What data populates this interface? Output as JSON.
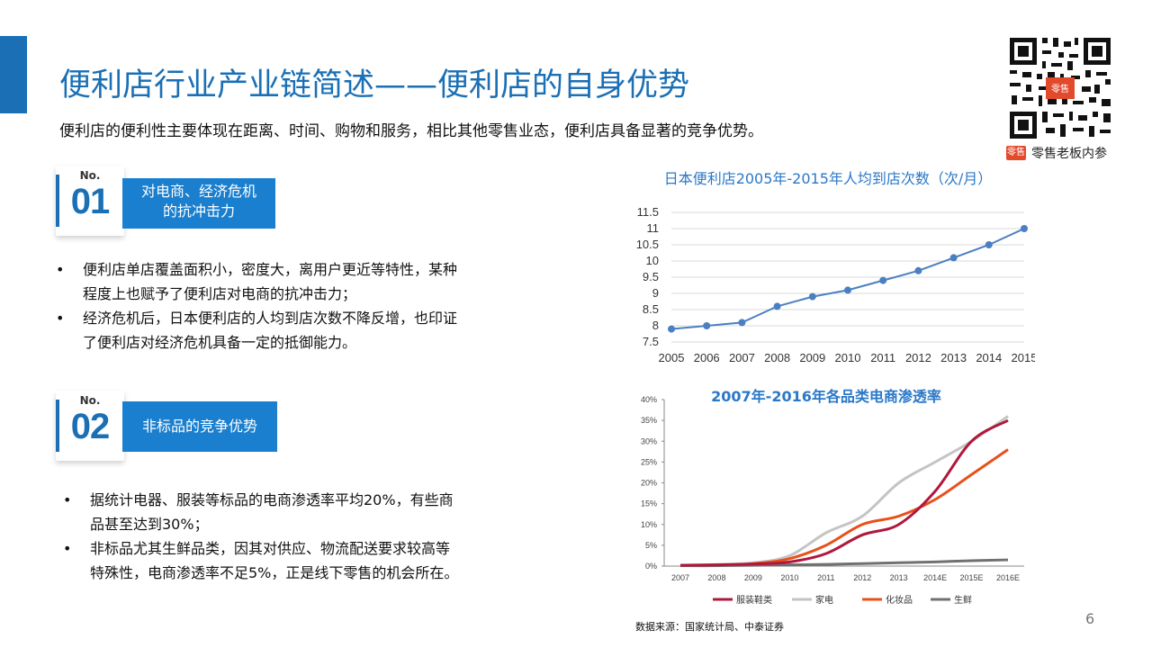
{
  "header": {
    "title": "便利店行业产业链简述——便利店的自身优势",
    "subtitle": "便利店的便利性主要体现在距离、时间、购物和服务，相比其他零售业态，便利店具备显著的竞争优势。",
    "brand_logo": "零售",
    "brand_name": "零售老板内参"
  },
  "sections": [
    {
      "no_label": "No.",
      "number": "01",
      "ribbon_lines": [
        "对电商、经济危机",
        "的抗冲击力"
      ],
      "bullets": [
        [
          "便利店单店覆盖面积小，密度大，离用户更近等特性，某种",
          "程度上也赋予了便利店对电商的抗冲击力；"
        ],
        [
          "经济危机后，日本便利店的人均到店次数不降反增，也印证",
          "了便利店对经济危机具备一定的抵御能力。"
        ]
      ]
    },
    {
      "no_label": "No.",
      "number": "02",
      "ribbon_lines": [
        "非标品的竞争优势"
      ],
      "bullets": [
        [
          "据统计电器、服装等标品的电商渗透率平均20%，有些商",
          "品甚至达到30%；"
        ],
        [
          "非标品尤其生鲜品类，因其对供应、物流配送要求较高等",
          "特殊性，电商渗透率不足5%，正是线下零售的机会所在。"
        ]
      ]
    }
  ],
  "bullet_symbol": "•",
  "source": "数据来源：国家统计局、中泰证券",
  "page_number": "6",
  "colors": {
    "accent": "#1a6fb5",
    "ribbon": "#1a7fcf",
    "line1": "#4a7fc1",
    "apparel": "#b0173c",
    "appliance": "#c4c4c4",
    "cosmetics": "#e8501a",
    "fresh": "#707070"
  },
  "chart_data": [
    {
      "type": "line",
      "title": "日本便利店2005年-2015年人均到店次数（次/月）",
      "x": [
        "2005",
        "2006",
        "2007",
        "2008",
        "2009",
        "2010",
        "2011",
        "2012",
        "2013",
        "2014",
        "2015"
      ],
      "series": [
        {
          "values": [
            7.9,
            8.0,
            8.1,
            8.6,
            8.9,
            9.1,
            9.4,
            9.7,
            10.1,
            10.5,
            11.0
          ]
        }
      ],
      "ylim": [
        7.5,
        11.5
      ],
      "yticks": [
        "7.5",
        "8",
        "8.5",
        "9",
        "9.5",
        "10",
        "10.5",
        "11",
        "11.5"
      ],
      "xlabel": "",
      "ylabel": "",
      "grid": true,
      "legend": "none"
    },
    {
      "type": "line",
      "title": "2007年-2016年各品类电商渗透率",
      "x": [
        "2007",
        "2008",
        "2009",
        "2010",
        "2011",
        "2012",
        "2013",
        "2014E",
        "2015E",
        "2016E"
      ],
      "yticks": [
        "0%",
        "5%",
        "10%",
        "15%",
        "20%",
        "25%",
        "30%",
        "35%",
        "40%"
      ],
      "ylim": [
        0,
        40
      ],
      "series": [
        {
          "name": "服装鞋类",
          "values": [
            0.2,
            0.3,
            0.5,
            1.0,
            3.0,
            7.5,
            10.0,
            18.0,
            30.0,
            35.0
          ]
        },
        {
          "name": "家电",
          "values": [
            0.2,
            0.4,
            0.8,
            2.5,
            8.0,
            12.0,
            20.0,
            25.0,
            30.0,
            36.0
          ]
        },
        {
          "name": "化妆品",
          "values": [
            0.2,
            0.3,
            0.6,
            1.8,
            5.0,
            10.0,
            12.0,
            16.0,
            22.0,
            28.0
          ]
        },
        {
          "name": "生鲜",
          "values": [
            0.1,
            0.1,
            0.2,
            0.3,
            0.4,
            0.6,
            0.8,
            1.0,
            1.3,
            1.5
          ]
        }
      ],
      "grid": false,
      "legend": "bottom"
    }
  ]
}
